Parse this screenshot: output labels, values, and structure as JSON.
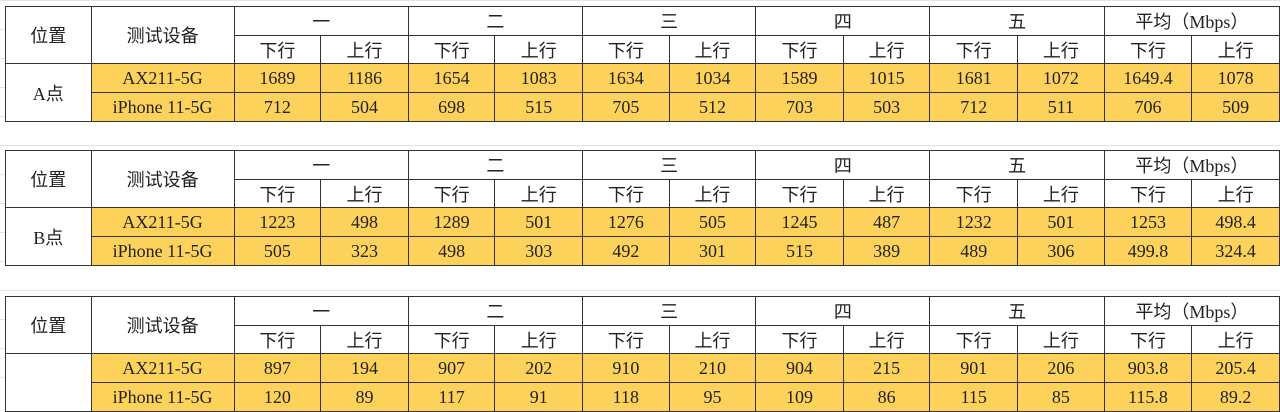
{
  "colors": {
    "highlight": "#fdd25a",
    "border": "#333333"
  },
  "headers": {
    "location": "位置",
    "device": "测试设备",
    "rounds": [
      "一",
      "二",
      "三",
      "四",
      "五",
      "平均（Mbps）"
    ],
    "down": "下行",
    "up": "上行"
  },
  "tables": [
    {
      "location": "A点",
      "rows": [
        {
          "device": "AX211-5G",
          "values": [
            "1689",
            "1186",
            "1654",
            "1083",
            "1634",
            "1034",
            "1589",
            "1015",
            "1681",
            "1072",
            "1649.4",
            "1078"
          ]
        },
        {
          "device": "iPhone 11-5G",
          "values": [
            "712",
            "504",
            "698",
            "515",
            "705",
            "512",
            "703",
            "503",
            "712",
            "511",
            "706",
            "509"
          ]
        }
      ]
    },
    {
      "location": "B点",
      "rows": [
        {
          "device": "AX211-5G",
          "values": [
            "1223",
            "498",
            "1289",
            "501",
            "1276",
            "505",
            "1245",
            "487",
            "1232",
            "501",
            "1253",
            "498.4"
          ]
        },
        {
          "device": "iPhone 11-5G",
          "values": [
            "505",
            "323",
            "498",
            "303",
            "492",
            "301",
            "515",
            "389",
            "489",
            "306",
            "499.8",
            "324.4"
          ]
        }
      ]
    },
    {
      "location": "",
      "rows": [
        {
          "device": "AX211-5G",
          "values": [
            "897",
            "194",
            "907",
            "202",
            "910",
            "210",
            "904",
            "215",
            "901",
            "206",
            "903.8",
            "205.4"
          ]
        },
        {
          "device": "iPhone 11-5G",
          "values": [
            "120",
            "89",
            "117",
            "91",
            "118",
            "95",
            "109",
            "86",
            "115",
            "85",
            "115.8",
            "89.2"
          ]
        }
      ]
    }
  ]
}
